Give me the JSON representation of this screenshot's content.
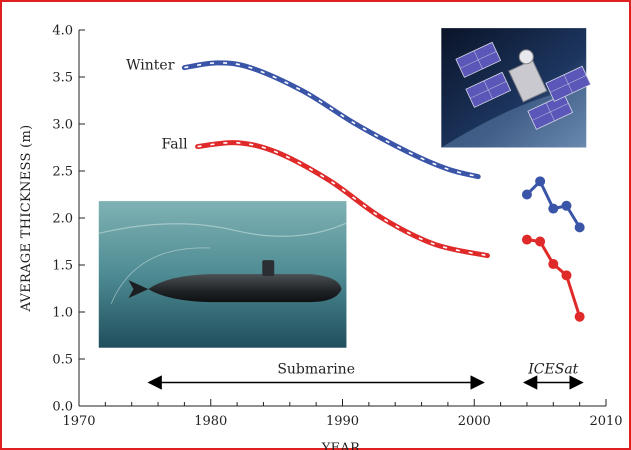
{
  "chart_data": {
    "type": "line",
    "title": "",
    "xlabel": "YEAR",
    "ylabel": "AVERAGE THICKNESS (m)",
    "xlim": [
      1970,
      2010
    ],
    "ylim": [
      0.0,
      4.0
    ],
    "x_ticks": [
      "1970",
      "1980",
      "1990",
      "2000",
      "2010"
    ],
    "y_ticks": [
      "0.0",
      "0.5",
      "1.0",
      "1.5",
      "2.0",
      "2.5",
      "3.0",
      "3.5",
      "4.0"
    ],
    "grid": false,
    "series": [
      {
        "name": "Winter",
        "color": "#3a55a8",
        "style": "dashed-curve",
        "x": [
          1978,
          1980.5,
          1983,
          1987,
          1991,
          1995,
          1998,
          2000.3
        ],
        "y": [
          3.6,
          3.65,
          3.6,
          3.35,
          3.0,
          2.7,
          2.52,
          2.44
        ]
      },
      {
        "name": "Fall",
        "color": "#e02a2a",
        "style": "dashed-curve",
        "x": [
          1979,
          1982,
          1985,
          1989,
          1993,
          1997,
          2001
        ],
        "y": [
          2.76,
          2.8,
          2.7,
          2.4,
          2.0,
          1.72,
          1.6
        ]
      },
      {
        "name": "",
        "color": "#3a55a8",
        "style": "markers",
        "x": [
          2004,
          2005,
          2006,
          2007,
          2008
        ],
        "y": [
          2.25,
          2.39,
          2.1,
          2.13,
          1.9
        ]
      },
      {
        "name": "",
        "color": "#e02a2a",
        "style": "markers",
        "x": [
          2004,
          2005,
          2006,
          2007,
          2008
        ],
        "y": [
          1.77,
          1.75,
          1.51,
          1.39,
          0.95
        ]
      }
    ],
    "annotations": [
      {
        "text": "Submarine",
        "x_from": 1975,
        "x_to": 2001,
        "y": 0.25
      },
      {
        "text": "ICESat",
        "x_from": 2003.5,
        "x_to": 2008.5,
        "y": 0.25
      }
    ],
    "images": [
      {
        "name": "satellite-image",
        "x_from": 1997.5,
        "x_to": 2008.5,
        "y_from": 2.75,
        "y_to": 4.02
      },
      {
        "name": "submarine-image",
        "x_from": 1971.5,
        "x_to": 1990.3,
        "y_from": 0.62,
        "y_to": 2.18
      }
    ]
  }
}
